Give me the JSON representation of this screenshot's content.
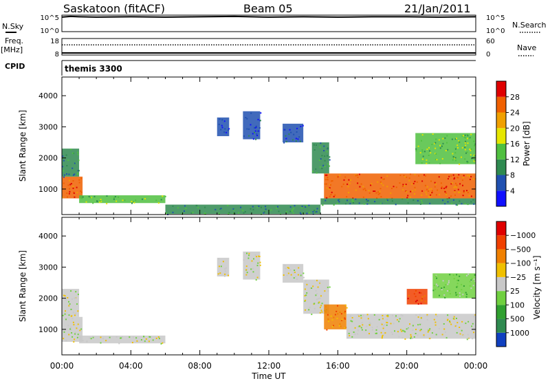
{
  "header": {
    "station": "Saskatoon (fitACF)",
    "beam": "Beam 05",
    "date": "21/Jan/2011"
  },
  "chart_data": [
    {
      "type": "line",
      "panel": "nsky",
      "left_label": "N.Sky",
      "right_label": "N.Search",
      "left_ticks": [
        "10^5",
        "10^0"
      ],
      "right_ticks": [
        "10^5",
        "10^0"
      ],
      "x": [
        0,
        0.5,
        1,
        2,
        4,
        6,
        8,
        10,
        12,
        14,
        16,
        18,
        20,
        22,
        24
      ],
      "nsky_log10": [
        4.4,
        4.6,
        4.5,
        4.4,
        4.5,
        4.4,
        4.5,
        4.6,
        4.4,
        4.5,
        4.4,
        4.5,
        4.5,
        4.4,
        4.5
      ]
    },
    {
      "type": "line",
      "panel": "frequency",
      "left_label": "Freq.",
      "left_unit": "[MHz]",
      "right_label": "Nave",
      "left_ticks": [
        "18",
        "8"
      ],
      "right_ticks": [
        "60",
        "0"
      ],
      "left_range": [
        8,
        18
      ],
      "right_range": [
        0,
        60
      ],
      "x": [
        0,
        24
      ],
      "freq_mhz": [
        10.5,
        10.5
      ],
      "nave": [
        32,
        32
      ]
    },
    {
      "type": "table",
      "panel": "cpid",
      "label": "CPID",
      "program": "themis 3300"
    },
    {
      "type": "heatmap",
      "panel": "power",
      "ylabel": "Slant Range [km]",
      "yticks": [
        "1000",
        "2000",
        "3000",
        "4000"
      ],
      "ylim": [
        180,
        4600
      ],
      "xlim": [
        0,
        24
      ],
      "colorbar": {
        "label": "Power [dB]",
        "ticks": [
          "4",
          "8",
          "12",
          "16",
          "20",
          "24",
          "28"
        ],
        "colors": [
          "#1010ff",
          "#2050b0",
          "#2f8a50",
          "#50c040",
          "#e6e600",
          "#f0a000",
          "#f06000",
          "#e00000"
        ]
      },
      "regions": [
        {
          "t0": 0.0,
          "t1": 1.2,
          "r0": 700,
          "r1": 1400,
          "level": 6
        },
        {
          "t0": 0.0,
          "t1": 1.0,
          "r0": 1400,
          "r1": 2300,
          "level": 2
        },
        {
          "t0": 1.0,
          "t1": 6.0,
          "r0": 550,
          "r1": 800,
          "level": 3
        },
        {
          "t0": 6.0,
          "t1": 15.0,
          "r0": 200,
          "r1": 500,
          "level": 2
        },
        {
          "t0": 9.0,
          "t1": 9.7,
          "r0": 2700,
          "r1": 3300,
          "level": 1
        },
        {
          "t0": 10.5,
          "t1": 11.5,
          "r0": 2600,
          "r1": 3500,
          "level": 1
        },
        {
          "t0": 12.8,
          "t1": 14.0,
          "r0": 2500,
          "r1": 3100,
          "level": 1
        },
        {
          "t0": 14.5,
          "t1": 15.5,
          "r0": 1500,
          "r1": 2500,
          "level": 2
        },
        {
          "t0": 15.2,
          "t1": 24.0,
          "r0": 700,
          "r1": 1500,
          "level": 6
        },
        {
          "t0": 15.0,
          "t1": 24.0,
          "r0": 500,
          "r1": 700,
          "level": 2
        },
        {
          "t0": 20.5,
          "t1": 24.0,
          "r0": 1800,
          "r1": 2800,
          "level": 3
        }
      ]
    },
    {
      "type": "heatmap",
      "panel": "velocity",
      "ylabel": "Slant Range [km]",
      "yticks": [
        "1000",
        "2000",
        "3000",
        "4000"
      ],
      "ylim": [
        180,
        4600
      ],
      "xlim": [
        0,
        24
      ],
      "xticks": [
        "00:00",
        "04:00",
        "08:00",
        "12:00",
        "16:00",
        "20:00",
        "00:00"
      ],
      "xlabel": "Time UT",
      "colorbar": {
        "label": "Velocity [m s⁻¹]",
        "ticks": [
          "1000",
          "500",
          "100",
          "25",
          "−25",
          "−100",
          "−500",
          "−1000"
        ],
        "colors": [
          "#1040c0",
          "#2f8a50",
          "#30a030",
          "#70d040",
          "#c8c8c8",
          "#f0c000",
          "#f08000",
          "#f04000",
          "#e00000"
        ]
      },
      "regions": [
        {
          "t0": 0.0,
          "t1": 1.2,
          "r0": 600,
          "r1": 1400,
          "level": 4
        },
        {
          "t0": 0.0,
          "t1": 1.0,
          "r0": 1400,
          "r1": 2300,
          "level": 4
        },
        {
          "t0": 1.0,
          "t1": 6.0,
          "r0": 550,
          "r1": 800,
          "level": 4
        },
        {
          "t0": 9.0,
          "t1": 9.7,
          "r0": 2700,
          "r1": 3300,
          "level": 4
        },
        {
          "t0": 10.5,
          "t1": 11.5,
          "r0": 2600,
          "r1": 3500,
          "level": 4
        },
        {
          "t0": 12.8,
          "t1": 14.0,
          "r0": 2500,
          "r1": 3100,
          "level": 4
        },
        {
          "t0": 14.0,
          "t1": 15.5,
          "r0": 1500,
          "r1": 2600,
          "level": 4
        },
        {
          "t0": 15.2,
          "t1": 16.5,
          "r0": 1000,
          "r1": 1800,
          "level": 6
        },
        {
          "t0": 16.5,
          "t1": 24.0,
          "r0": 700,
          "r1": 1500,
          "level": 4
        },
        {
          "t0": 20.0,
          "t1": 21.2,
          "r0": 1800,
          "r1": 2300,
          "level": 7
        },
        {
          "t0": 21.5,
          "t1": 24.0,
          "r0": 2000,
          "r1": 2800,
          "level": 3
        }
      ]
    }
  ]
}
